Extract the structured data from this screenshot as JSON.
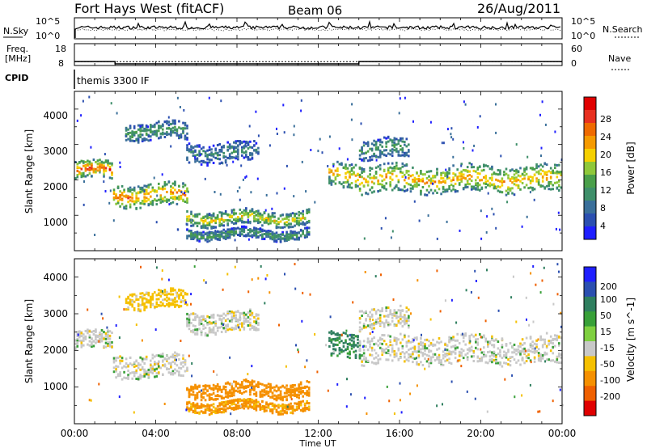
{
  "header": {
    "title": "Fort Hays West (fitACF)",
    "beam": "Beam 06",
    "date": "26/Aug/2011"
  },
  "noise_panel": {
    "left_label": "N.Sky",
    "right_label": "N.Search",
    "left_ticks": [
      "10^5",
      "10^0"
    ],
    "right_ticks": [
      "10^5",
      "10^0"
    ]
  },
  "freq_panel": {
    "left_label_line1": "Freq.",
    "left_label_line2": "[MHz]",
    "left_ticks": [
      "18",
      "8"
    ],
    "right_label": "Nave",
    "right_ticks": [
      "60",
      "0"
    ],
    "freq_steps": [
      {
        "start_h": 0,
        "end_h": 2,
        "mhz": 15
      },
      {
        "start_h": 2,
        "end_h": 14,
        "mhz": 12
      },
      {
        "start_h": 14,
        "end_h": 24,
        "mhz": 15
      }
    ],
    "nave_level": 15
  },
  "cpid_panel": {
    "label": "CPID",
    "text": "themis 3300 IF"
  },
  "colors": {
    "power_scale": [
      "#1f1fff",
      "#2b4fb0",
      "#3a6f9a",
      "#3f8f6a",
      "#4a9f4a",
      "#8fc83a",
      "#f5d000",
      "#f59a00",
      "#ef6a00",
      "#e83020",
      "#e00000"
    ],
    "velocity_scale": [
      "#1f1fff",
      "#2b4fb0",
      "#2f7f5f",
      "#38a038",
      "#7fd040",
      "#c8c8c8",
      "#f5c000",
      "#f59000",
      "#ef6000",
      "#e00000"
    ]
  },
  "chart_data": [
    {
      "type": "heatmap",
      "name": "power",
      "ylabel": "Slant Range [km]",
      "ylim": [
        0,
        4500
      ],
      "yticks": [
        "1000",
        "2000",
        "3000",
        "4000"
      ],
      "colorbar_label": "Power [dB]",
      "colorbar_ticks": [
        "28",
        "24",
        "20",
        "16",
        "12",
        "8",
        "4"
      ],
      "colorbar_range": [
        0,
        32
      ],
      "xlim": [
        0,
        24
      ],
      "xticks": [
        "00:00",
        "04:00",
        "08:00",
        "12:00",
        "16:00",
        "20:00",
        "00:00"
      ],
      "bands": [
        {
          "start_h": 0.0,
          "end_h": 1.9,
          "center_km": 2300,
          "width_km": 350,
          "power_db": 22
        },
        {
          "start_h": 1.9,
          "end_h": 5.5,
          "center_km": 1600,
          "width_km": 450,
          "power_db": 20
        },
        {
          "start_h": 2.5,
          "end_h": 5.5,
          "center_km": 3400,
          "width_km": 350,
          "power_db": 10
        },
        {
          "start_h": 5.5,
          "end_h": 9.0,
          "center_km": 2800,
          "width_km": 400,
          "power_db": 8
        },
        {
          "start_h": 5.5,
          "end_h": 11.5,
          "center_km": 950,
          "width_km": 300,
          "power_db": 16
        },
        {
          "start_h": 5.5,
          "end_h": 11.5,
          "center_km": 500,
          "width_km": 200,
          "power_db": 10
        },
        {
          "start_h": 12.5,
          "end_h": 14.0,
          "center_km": 2200,
          "width_km": 500,
          "power_db": 18
        },
        {
          "start_h": 14.0,
          "end_h": 24.0,
          "center_km": 2050,
          "width_km": 550,
          "power_db": 18
        },
        {
          "start_h": 14.0,
          "end_h": 16.5,
          "center_km": 2900,
          "width_km": 400,
          "power_db": 10
        }
      ]
    },
    {
      "type": "heatmap",
      "name": "velocity",
      "ylabel": "Slant Range [km]",
      "ylim": [
        0,
        4500
      ],
      "yticks": [
        "1000",
        "2000",
        "3000",
        "4000"
      ],
      "colorbar_label": "Velocity [m s^-1]",
      "colorbar_ticks": [
        "200",
        "100",
        "50",
        "15",
        "-15",
        "-50",
        "-100",
        "-200"
      ],
      "colorbar_range": [
        -250,
        250
      ],
      "xlim": [
        0,
        24
      ],
      "xlabel": "Time UT",
      "xticks": [
        "00:00",
        "04:00",
        "08:00",
        "12:00",
        "16:00",
        "20:00",
        "00:00"
      ],
      "bands": [
        {
          "start_h": 0.0,
          "end_h": 1.9,
          "center_km": 2300,
          "width_km": 350,
          "velocity": 0
        },
        {
          "start_h": 1.9,
          "end_h": 5.5,
          "center_km": 1600,
          "width_km": 450,
          "velocity": 0
        },
        {
          "start_h": 2.5,
          "end_h": 5.5,
          "center_km": 3400,
          "width_km": 350,
          "velocity": -30
        },
        {
          "start_h": 5.5,
          "end_h": 9.0,
          "center_km": 2800,
          "width_km": 400,
          "velocity": 0
        },
        {
          "start_h": 5.5,
          "end_h": 11.5,
          "center_km": 950,
          "width_km": 300,
          "velocity": -70
        },
        {
          "start_h": 5.5,
          "end_h": 11.5,
          "center_km": 500,
          "width_km": 200,
          "velocity": -60
        },
        {
          "start_h": 12.5,
          "end_h": 14.0,
          "center_km": 2200,
          "width_km": 500,
          "velocity": 40
        },
        {
          "start_h": 14.0,
          "end_h": 24.0,
          "center_km": 2050,
          "width_km": 550,
          "velocity": 0
        },
        {
          "start_h": 14.0,
          "end_h": 16.5,
          "center_km": 2900,
          "width_km": 400,
          "velocity": 0
        }
      ]
    }
  ]
}
